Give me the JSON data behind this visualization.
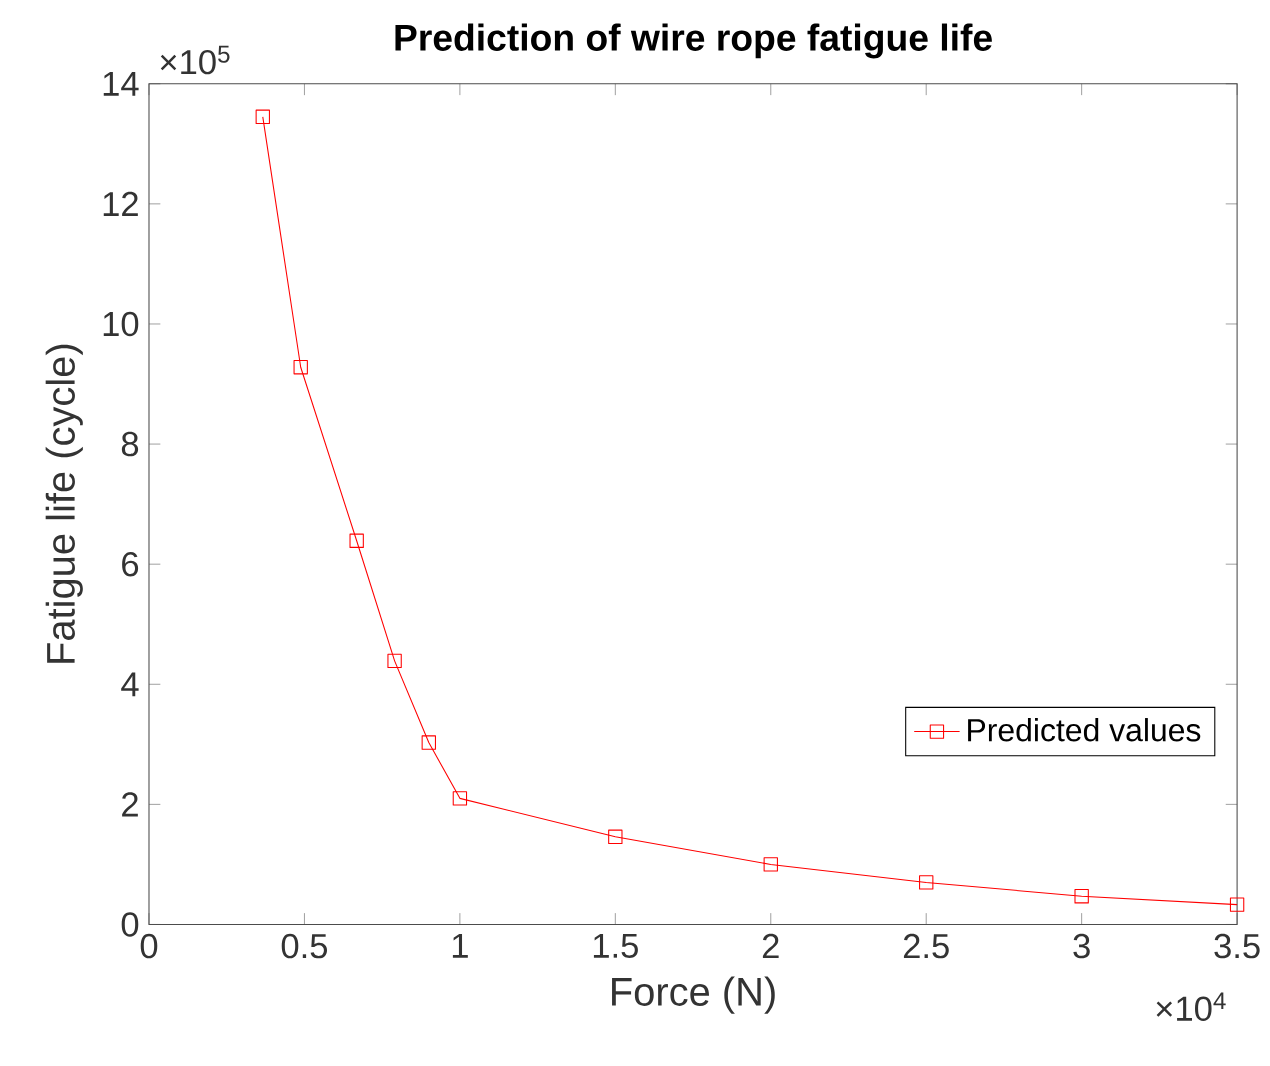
{
  "chart_data": {
    "type": "line",
    "title": "Prediction of wire rope fatigue life",
    "xlabel": "Force (N)",
    "ylabel": "Fatigue life (cycle)",
    "x": [
      0.366,
      0.488,
      0.668,
      0.79,
      0.9,
      1,
      1.5,
      2,
      2.5,
      3,
      3.5
    ],
    "series": [
      {
        "name": "Predicted values",
        "color": "#ff0000",
        "values": [
          13.45,
          9.28,
          6.39,
          4.39,
          3.03,
          2.1,
          1.46,
          1.0,
          0.7,
          0.47,
          0.33
        ]
      }
    ],
    "xlim": [
      0,
      3.5
    ],
    "ylim": [
      0,
      14
    ],
    "xticks": [
      0,
      0.5,
      1,
      1.5,
      2,
      2.5,
      3,
      3.5
    ],
    "yticks": [
      0,
      2,
      4,
      6,
      8,
      10,
      12,
      14
    ],
    "annotations": [
      "×10$^{5}$",
      "×10$^{4}$"
    ],
    "marker": "square",
    "line_style": "solid",
    "grid": false,
    "legend": "right"
  }
}
